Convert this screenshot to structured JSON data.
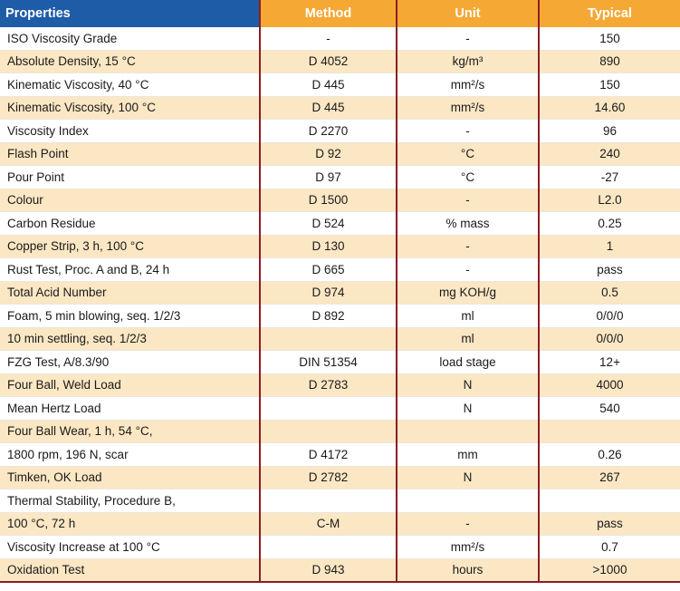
{
  "headers": [
    "Properties",
    "Method",
    "Unit",
    "Typical"
  ],
  "rows": [
    {
      "property": "ISO Viscosity Grade",
      "method": "-",
      "unit": "-",
      "typical": "150"
    },
    {
      "property": "Absolute Density, 15 °C",
      "method": "D 4052",
      "unit": "kg/m³",
      "typical": "890"
    },
    {
      "property": "Kinematic Viscosity, 40 °C",
      "method": "D 445",
      "unit": "mm²/s",
      "typical": "150"
    },
    {
      "property": "Kinematic Viscosity, 100 °C",
      "method": "D 445",
      "unit": "mm²/s",
      "typical": "14.60"
    },
    {
      "property": "Viscosity Index",
      "method": "D 2270",
      "unit": "-",
      "typical": "96"
    },
    {
      "property": "Flash Point",
      "method": "D 92",
      "unit": "°C",
      "typical": "240"
    },
    {
      "property": "Pour Point",
      "method": "D 97",
      "unit": "°C",
      "typical": "-27"
    },
    {
      "property": "Colour",
      "method": "D 1500",
      "unit": "-",
      "typical": "L2.0"
    },
    {
      "property": "Carbon Residue",
      "method": "D 524",
      "unit": "% mass",
      "typical": "0.25"
    },
    {
      "property": "Copper Strip, 3 h, 100 °C",
      "method": "D 130",
      "unit": "-",
      "typical": "1"
    },
    {
      "property": "Rust Test, Proc. A and B, 24 h",
      "method": "D 665",
      "unit": "-",
      "typical": "pass"
    },
    {
      "property": "Total Acid Number",
      "method": "D 974",
      "unit": "mg KOH/g",
      "typical": "0.5"
    },
    {
      "property": "Foam, 5 min blowing, seq. 1/2/3",
      "method": "D 892",
      "unit": "ml",
      "typical": "0/0/0"
    },
    {
      "property": "10 min settling, seq. 1/2/3",
      "method": "",
      "unit": "ml",
      "typical": "0/0/0"
    },
    {
      "property": "FZG Test, A/8.3/90",
      "method": "DIN 51354",
      "unit": "load stage",
      "typical": "12+"
    },
    {
      "property": "Four Ball, Weld Load",
      "method": "D 2783",
      "unit": "N",
      "typical": "4000"
    },
    {
      "property": "Mean Hertz Load",
      "method": "",
      "unit": "N",
      "typical": "540"
    },
    {
      "property": "Four Ball Wear, 1 h, 54 °C,",
      "method": "",
      "unit": "",
      "typical": ""
    },
    {
      "property": "1800 rpm, 196 N, scar",
      "method": "D 4172",
      "unit": "mm",
      "typical": "0.26"
    },
    {
      "property": "Timken, OK Load",
      "method": "D 2782",
      "unit": "N",
      "typical": "267"
    },
    {
      "property": "Thermal Stability, Procedure B,",
      "method": "",
      "unit": "",
      "typical": ""
    },
    {
      "property": "100 °C, 72 h",
      "method": "C-M",
      "unit": "-",
      "typical": "pass"
    },
    {
      "property": "Viscosity Increase at 100 °C",
      "method": "",
      "unit": "mm²/s",
      "typical": "0.7"
    },
    {
      "property": "Oxidation Test",
      "method": "D 943",
      "unit": "hours",
      "typical": ">1000"
    }
  ],
  "colors": {
    "header_properties": "#1f5ca8",
    "header_other": "#f5a833",
    "row_stripe": "#fbe7c4",
    "column_rule": "#8c1d24"
  }
}
